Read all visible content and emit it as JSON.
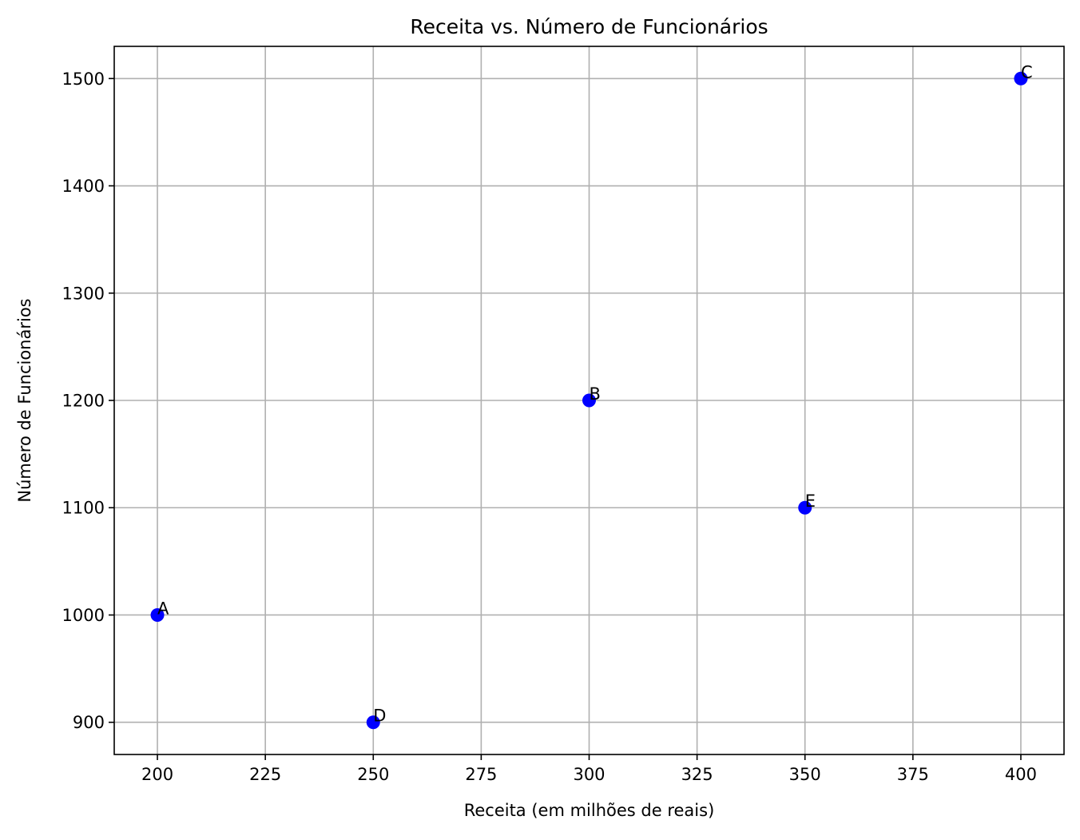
{
  "chart_data": {
    "type": "scatter",
    "title": "Receita vs. Número de Funcionários",
    "xlabel": "Receita (em milhões de reais)",
    "ylabel": "Número de Funcionários",
    "xlim": [
      190,
      410
    ],
    "ylim": [
      870,
      1530
    ],
    "xticks": [
      200,
      225,
      250,
      275,
      300,
      325,
      350,
      375,
      400
    ],
    "yticks": [
      900,
      1000,
      1100,
      1200,
      1300,
      1400,
      1500
    ],
    "grid": true,
    "marker_color": "#0000ff",
    "points": [
      {
        "label": "A",
        "x": 200,
        "y": 1000
      },
      {
        "label": "B",
        "x": 300,
        "y": 1200
      },
      {
        "label": "C",
        "x": 400,
        "y": 1500
      },
      {
        "label": "D",
        "x": 250,
        "y": 900
      },
      {
        "label": "E",
        "x": 350,
        "y": 1100
      }
    ]
  }
}
